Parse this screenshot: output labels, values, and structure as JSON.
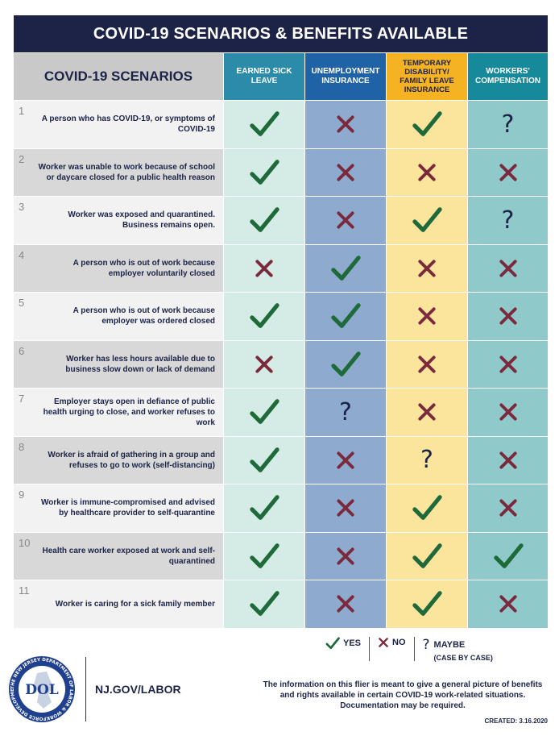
{
  "title": "COVID-19 SCENARIOS & BENEFITS AVAILABLE",
  "header": {
    "scenarios": "COVID-19 SCENARIOS",
    "columns": [
      "EARNED SICK LEAVE",
      "UNEMPLOYMENT INSURANCE",
      "TEMPORARY DISABILITY/ FAMILY LEAVE INSURANCE",
      "WORKERS' COMPENSATION"
    ]
  },
  "rows": [
    {
      "num": "1",
      "text": "A person who has COVID-19, or symptoms of COVID-19",
      "marks": [
        "yes",
        "no",
        "yes",
        "maybe"
      ]
    },
    {
      "num": "2",
      "text": "Worker was unable to work because of school or daycare closed for a public health reason",
      "marks": [
        "yes",
        "no",
        "no",
        "no"
      ]
    },
    {
      "num": "3",
      "text": "Worker was exposed and quarantined. Business remains open.",
      "marks": [
        "yes",
        "no",
        "yes",
        "maybe"
      ]
    },
    {
      "num": "4",
      "text": "A person who is out of work because employer voluntarily closed",
      "marks": [
        "no",
        "yes",
        "no",
        "no"
      ]
    },
    {
      "num": "5",
      "text": "A person who is out of work because employer was ordered closed",
      "marks": [
        "yes",
        "yes",
        "no",
        "no"
      ]
    },
    {
      "num": "6",
      "text": "Worker has less hours available due to business slow down or lack of demand",
      "marks": [
        "no",
        "yes",
        "no",
        "no"
      ]
    },
    {
      "num": "7",
      "text": "Employer stays open in defiance of public health urging to close, and worker refuses to work",
      "marks": [
        "yes",
        "maybe",
        "no",
        "no"
      ]
    },
    {
      "num": "8",
      "text": "Worker is afraid of gathering in a group and refuses to go to work (self-distancing)",
      "marks": [
        "yes",
        "no",
        "maybe",
        "no"
      ]
    },
    {
      "num": "9",
      "text": "Worker is immune-compromised and advised by healthcare provider to self-quarantine",
      "marks": [
        "yes",
        "no",
        "yes",
        "no"
      ]
    },
    {
      "num": "10",
      "text": "Health care worker exposed at work and self-quarantined",
      "marks": [
        "yes",
        "no",
        "yes",
        "yes"
      ]
    },
    {
      "num": "11",
      "text": "Worker is caring for a sick family member",
      "marks": [
        "yes",
        "no",
        "yes",
        "no"
      ]
    }
  ],
  "legend": {
    "yes": "YES",
    "no": "NO",
    "maybe": "MAYBE",
    "maybe_sub": "(CASE BY CASE)"
  },
  "footer": {
    "logo_text": "DOL",
    "seal_ring_text": "THE NEW JERSEY DEPARTMENT OF LABOR & WORKFORCE DEVELOPMENT",
    "site": "NJ.GOV/LABOR",
    "disclaimer": "The information on this flier is meant to give a general picture of benefits and rights available in certain COVID-19 work-related situations. Documentation may be required.",
    "created": "CREATED: 3.16.2020"
  },
  "colors": {
    "navy": "#1c2347",
    "check": "#1f6a3a",
    "cross": "#7a2a3c",
    "esl_header": "#2b8ba8",
    "ui_header": "#1f63a6",
    "td_header": "#f5b324",
    "wc_header": "#16899a"
  },
  "icons": {
    "yes": "check-icon",
    "no": "cross-icon",
    "maybe": "question-icon"
  }
}
